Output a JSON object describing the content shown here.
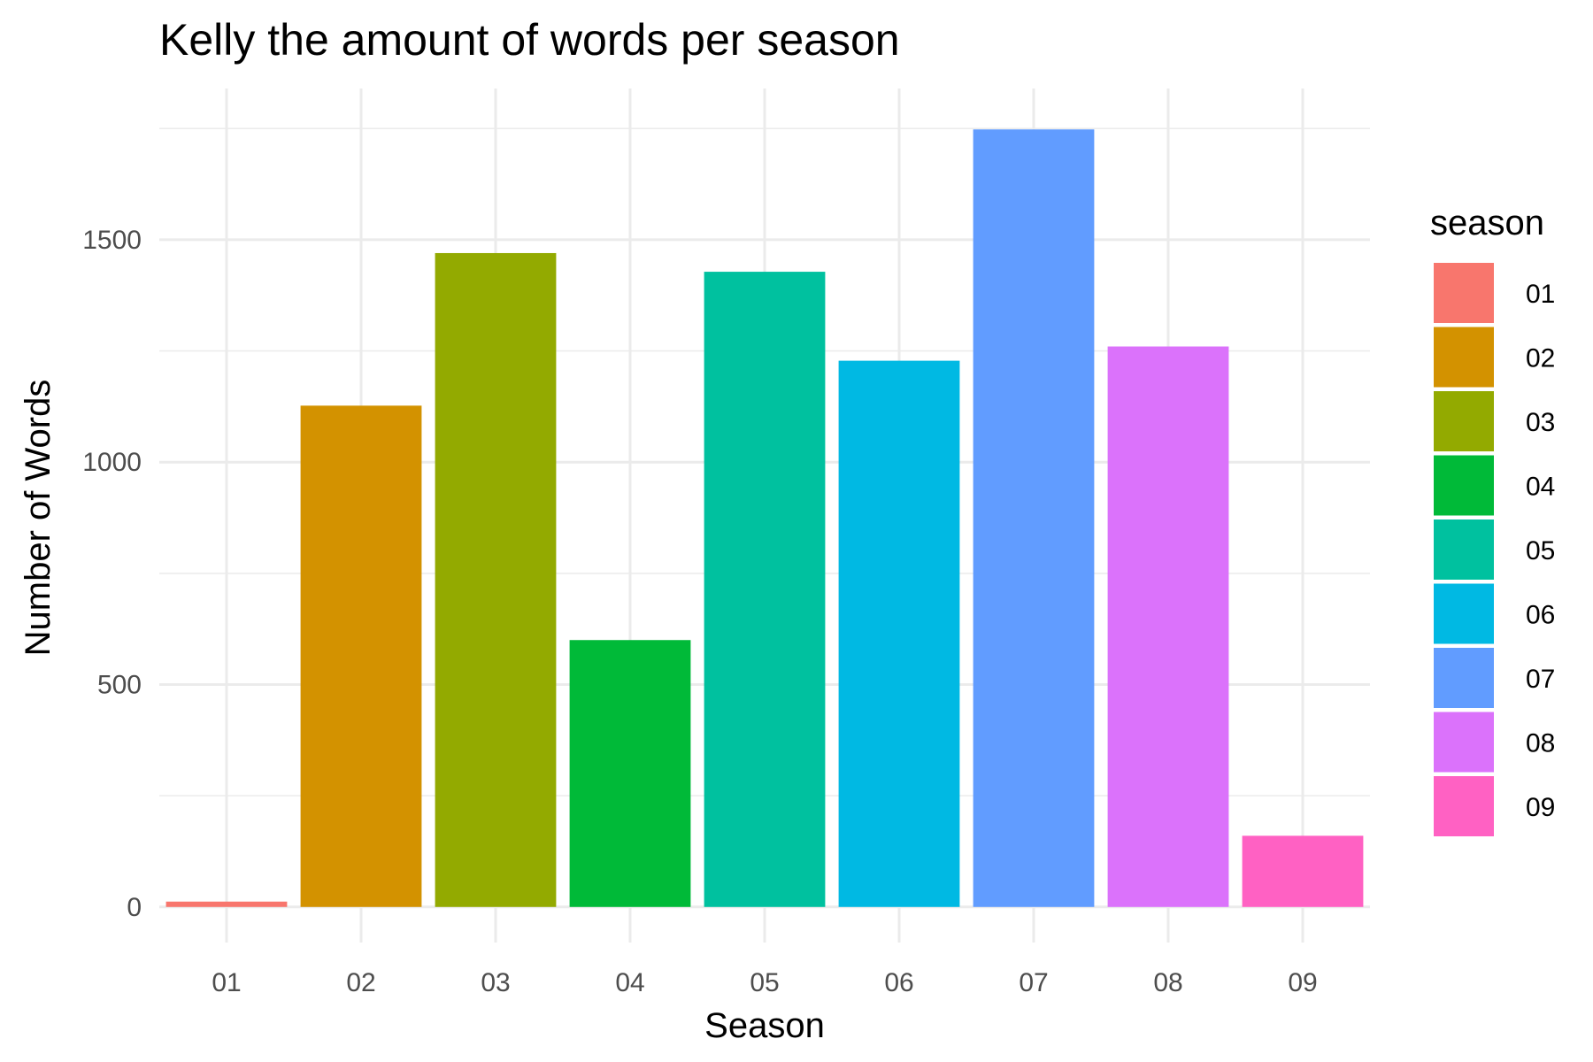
{
  "chart_data": {
    "type": "bar",
    "title": "Kelly the amount of words per season",
    "xlabel": "Season",
    "ylabel": "Number of Words",
    "categories": [
      "01",
      "02",
      "03",
      "04",
      "05",
      "06",
      "07",
      "08",
      "09"
    ],
    "values": [
      12,
      1127,
      1470,
      600,
      1428,
      1228,
      1748,
      1260,
      160
    ],
    "colors": [
      "#F8766D",
      "#D39200",
      "#93AA00",
      "#00BA38",
      "#00C19F",
      "#00B9E3",
      "#619CFF",
      "#DB72FB",
      "#FF61C3"
    ],
    "ylim": [
      -80,
      1840
    ],
    "y_ticks": [
      0,
      500,
      1000,
      1500
    ],
    "y_minor_ticks": [
      250,
      750,
      1250,
      1750
    ],
    "grid": true,
    "legend": {
      "title": "season",
      "position": "right",
      "entries": [
        "01",
        "02",
        "03",
        "04",
        "05",
        "06",
        "07",
        "08",
        "09"
      ]
    }
  }
}
